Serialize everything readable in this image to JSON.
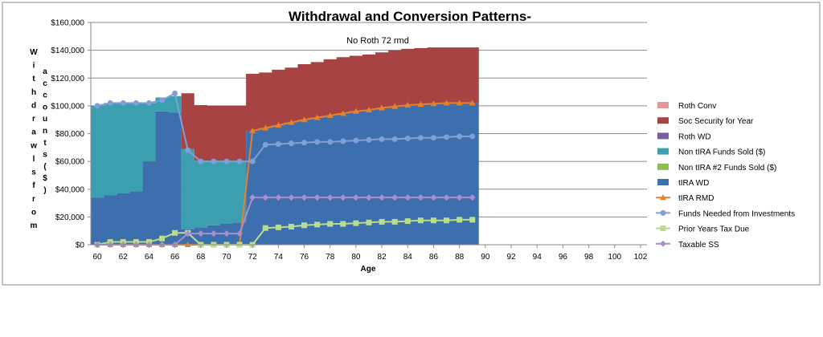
{
  "chart_data": {
    "type": "area",
    "title": "Withdrawal and Conversion Patterns-",
    "subtitle": "No Roth 72 rmd",
    "xlabel": "Age",
    "ylabel_left": "W i t h d r a w l s   f r o m",
    "ylabel_right": "a c c o u n t s   ( $ )",
    "xlim": [
      59.5,
      102.5
    ],
    "ylim": [
      0,
      160000
    ],
    "x_ticks": [
      60,
      62,
      64,
      66,
      68,
      70,
      72,
      74,
      76,
      78,
      80,
      82,
      84,
      86,
      88,
      90,
      92,
      94,
      96,
      98,
      100,
      102
    ],
    "y_ticks": [
      0,
      20000,
      40000,
      60000,
      80000,
      100000,
      120000,
      140000,
      160000
    ],
    "y_tick_labels": [
      "$0",
      "$20,000",
      "$40,000",
      "$60,000",
      "$80,000",
      "$100,000",
      "$120,000",
      "$140,000",
      "$160,000"
    ],
    "grid": "horizontal",
    "legend_position": "right",
    "colors": {
      "roth_conv": "#e09a9a",
      "soc_security": "#a84343",
      "roth_wd": "#7a5fa3",
      "non_tira": "#3b9fb0",
      "non_tira2": "#8cbf4e",
      "tira_wd": "#3d6fae",
      "tira_rmd": "#e8802a",
      "funds_needed": "#7f9fd6",
      "prior_tax": "#b9dc8e",
      "taxable_ss": "#a68fcb"
    },
    "x": [
      60,
      61,
      62,
      63,
      64,
      65,
      66,
      67,
      68,
      69,
      70,
      71,
      72,
      73,
      74,
      75,
      76,
      77,
      78,
      79,
      80,
      81,
      82,
      83,
      84,
      85,
      86,
      87,
      88,
      89
    ],
    "stacked_series": [
      {
        "name": "tIRA WD",
        "key": "tira_wd",
        "values": [
          34000,
          35500,
          37000,
          38500,
          60000,
          96000,
          95000,
          11000,
          12500,
          14000,
          15000,
          16000,
          82000,
          84000,
          86000,
          88000,
          90000,
          91500,
          93000,
          94500,
          96000,
          97000,
          98500,
          99500,
          100500,
          101000,
          101500,
          102000,
          102000,
          102000
        ]
      },
      {
        "name": "Non tIRA Funds Sold ($)",
        "key": "non_tira",
        "values": [
          66000,
          66500,
          65000,
          64000,
          42000,
          10000,
          12000,
          58000,
          48000,
          46000,
          45000,
          44000,
          0,
          0,
          0,
          0,
          0,
          0,
          0,
          0,
          0,
          0,
          0,
          0,
          0,
          0,
          0,
          0,
          0,
          0
        ]
      },
      {
        "name": "Soc Security for Year",
        "key": "soc_security",
        "values": [
          0,
          0,
          0,
          0,
          0,
          0,
          0,
          40000,
          40000,
          40000,
          40000,
          40000,
          41000,
          40000,
          40000,
          39500,
          40000,
          40000,
          40500,
          40500,
          40000,
          40000,
          40000,
          40500,
          40500,
          40500,
          40500,
          40000,
          40000,
          40000
        ]
      }
    ],
    "line_series": [
      {
        "name": "tIRA RMD",
        "key": "tira_rmd",
        "marker": "triangle",
        "values": [
          0,
          0,
          0,
          0,
          0,
          0,
          0,
          0,
          0,
          0,
          0,
          0,
          82000,
          84000,
          86000,
          88000,
          90000,
          91500,
          93000,
          94500,
          96000,
          97000,
          98500,
          99500,
          100500,
          101000,
          101500,
          102000,
          102000,
          102000
        ]
      },
      {
        "name": "Funds Needed from Investments",
        "key": "funds_needed",
        "marker": "circle",
        "values": [
          100000,
          102000,
          102000,
          102000,
          102000,
          104000,
          109000,
          68000,
          60000,
          60000,
          60000,
          60000,
          60000,
          72000,
          72500,
          73000,
          73500,
          74000,
          74000,
          74500,
          75000,
          75500,
          76000,
          76000,
          76500,
          77000,
          77000,
          77500,
          78000,
          78000
        ]
      },
      {
        "name": "Prior Years Tax Due",
        "key": "prior_tax",
        "marker": "square",
        "values": [
          0,
          2000,
          2000,
          2000,
          2000,
          4500,
          8500,
          8500,
          0,
          0,
          0,
          0,
          0,
          12000,
          12500,
          13000,
          14000,
          14500,
          15000,
          15000,
          15500,
          16000,
          16500,
          16500,
          17000,
          17500,
          17500,
          17500,
          18000,
          18000
        ]
      },
      {
        "name": "Taxable SS",
        "key": "taxable_ss",
        "marker": "diamond",
        "values": [
          0,
          0,
          0,
          0,
          0,
          0,
          0,
          8000,
          8000,
          8000,
          8000,
          8000,
          34000,
          34000,
          34000,
          34000,
          34000,
          34000,
          34000,
          34000,
          34000,
          34000,
          34000,
          34000,
          34000,
          34000,
          34000,
          34000,
          34000,
          34000
        ]
      }
    ],
    "legend": [
      {
        "name": "Roth Conv",
        "key": "roth_conv",
        "kind": "box"
      },
      {
        "name": "Soc Security for Year",
        "key": "soc_security",
        "kind": "box"
      },
      {
        "name": "Roth WD",
        "key": "roth_wd",
        "kind": "box"
      },
      {
        "name": "Non tIRA Funds Sold ($)",
        "key": "non_tira",
        "kind": "box"
      },
      {
        "name": "Non tIRA #2 Funds Sold ($)",
        "key": "non_tira2",
        "kind": "box"
      },
      {
        "name": "tIRA WD",
        "key": "tira_wd",
        "kind": "box"
      },
      {
        "name": "tIRA RMD",
        "key": "tira_rmd",
        "kind": "line",
        "marker": "triangle"
      },
      {
        "name": "Funds Needed from Investments",
        "key": "funds_needed",
        "kind": "line",
        "marker": "circle"
      },
      {
        "name": "Prior Years Tax Due",
        "key": "prior_tax",
        "kind": "line",
        "marker": "square"
      },
      {
        "name": "Taxable SS",
        "key": "taxable_ss",
        "kind": "line",
        "marker": "diamond"
      }
    ]
  }
}
